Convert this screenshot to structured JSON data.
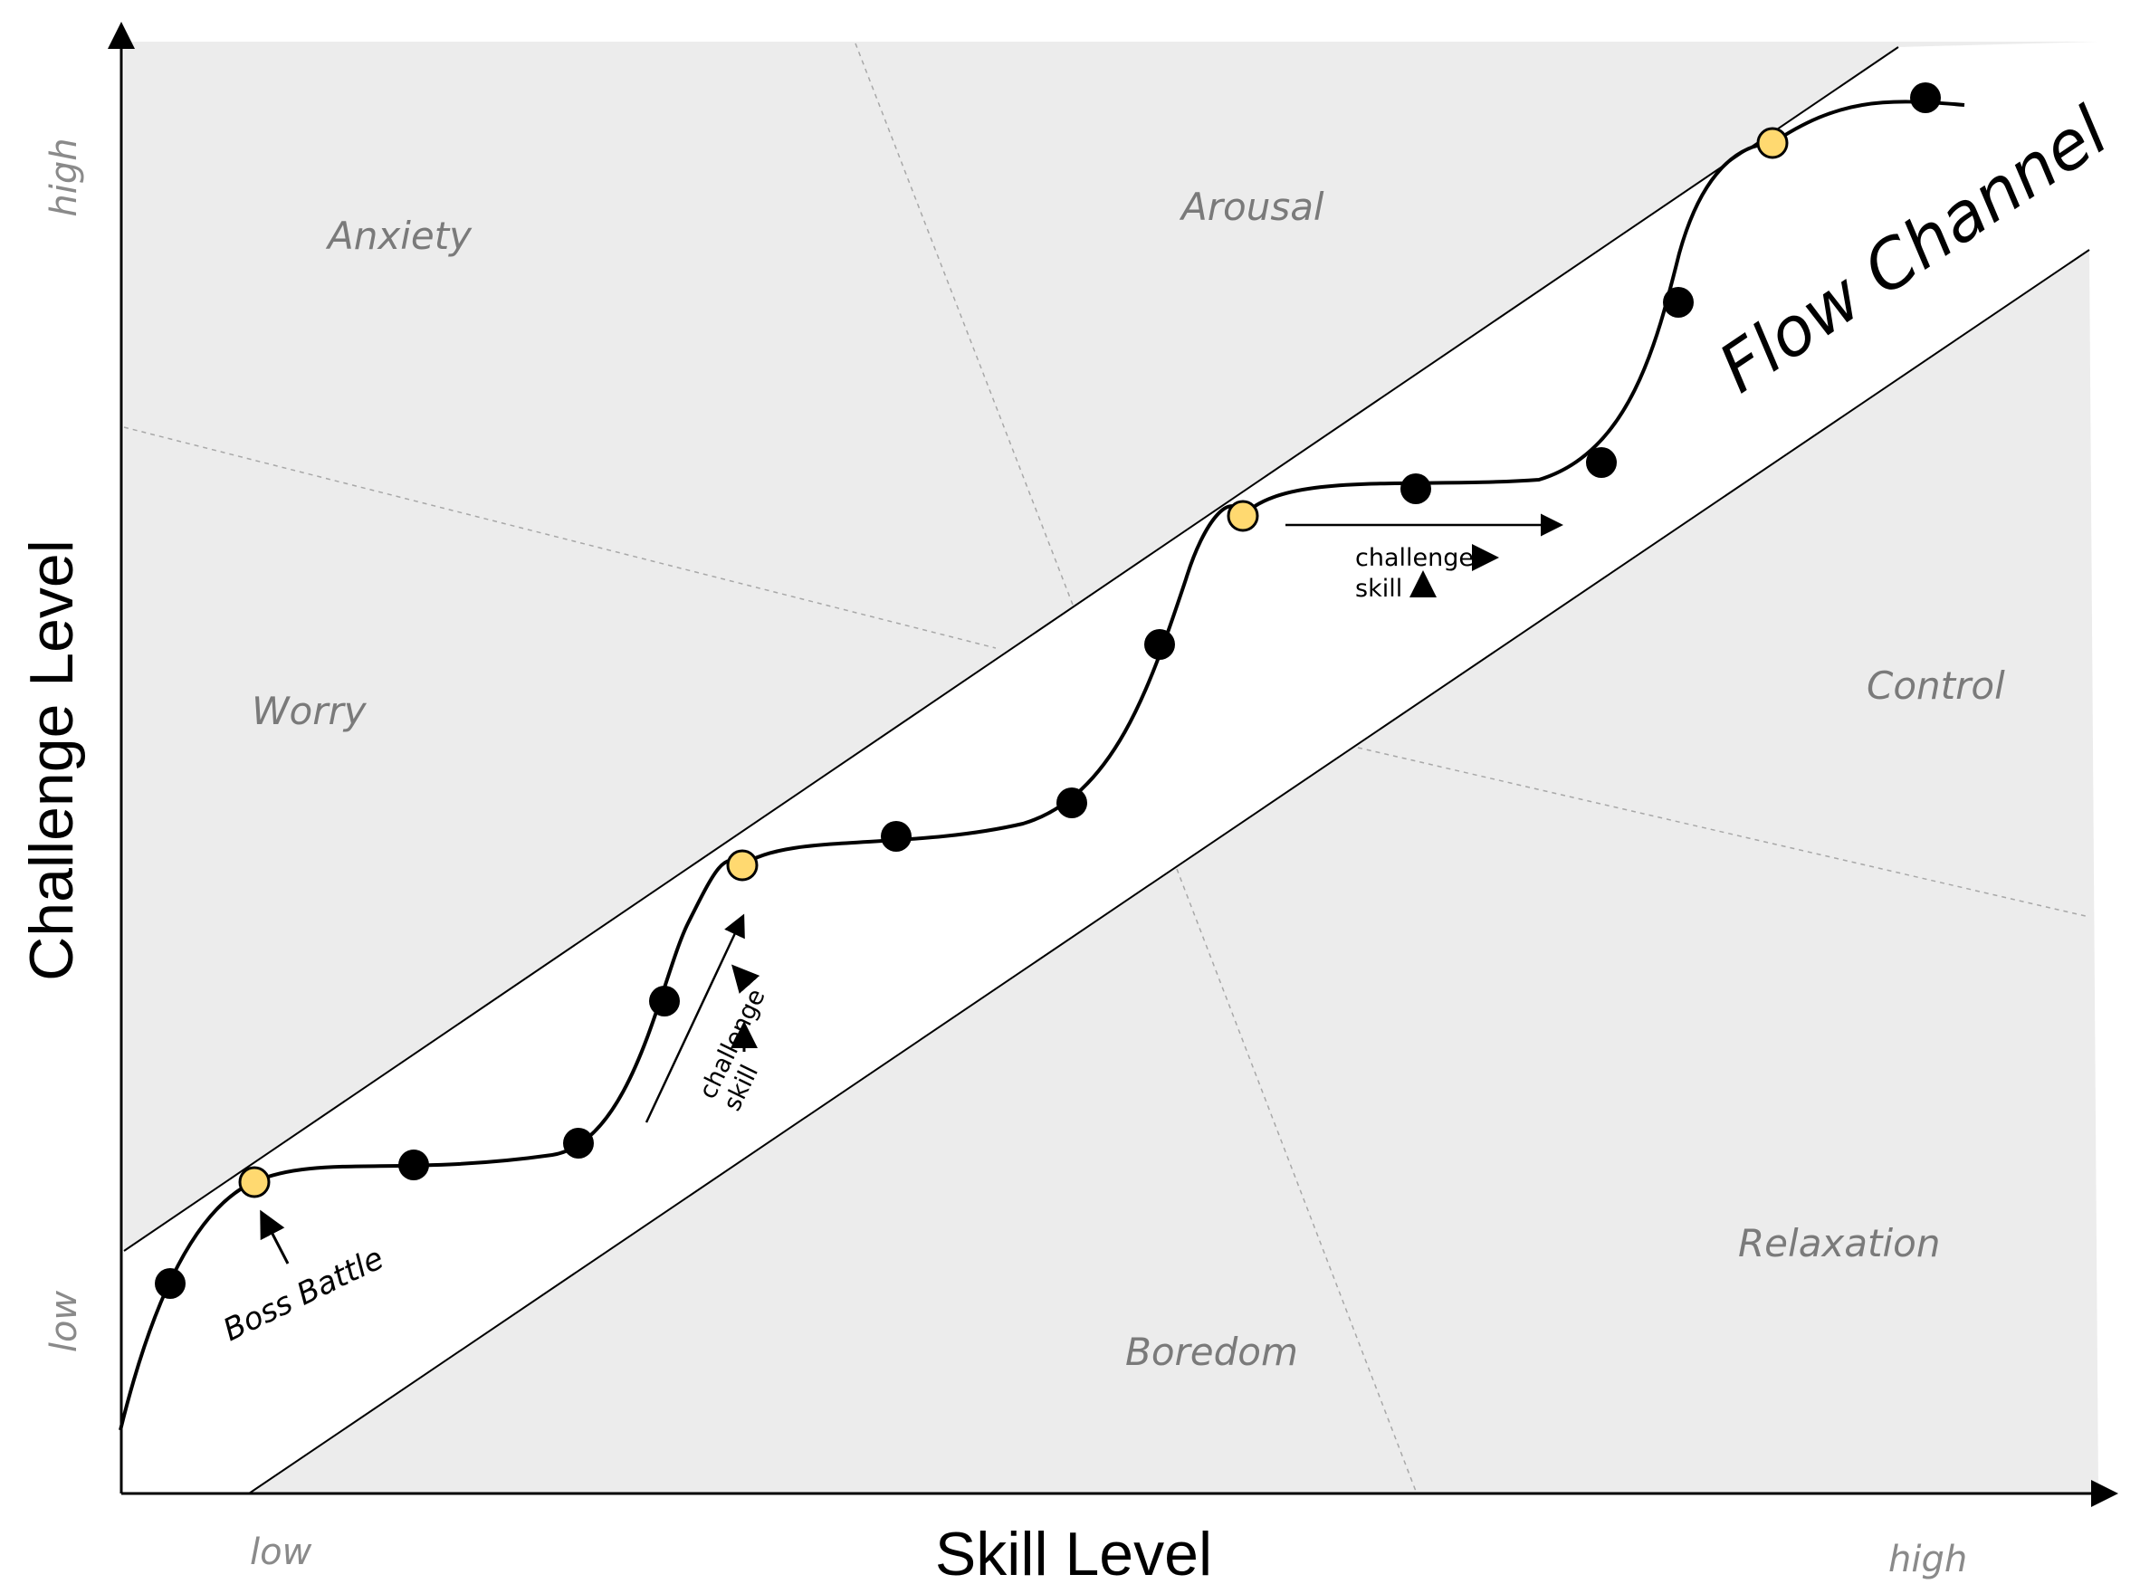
{
  "axes": {
    "x_label": "Skill Level",
    "y_label": "Challenge Level",
    "x_low": "low",
    "x_high": "high",
    "y_low": "low",
    "y_high": "high"
  },
  "zones": {
    "anxiety": "Anxiety",
    "arousal": "Arousal",
    "worry": "Worry",
    "control": "Control",
    "relaxation": "Relaxation",
    "boredom": "Boredom",
    "flow_channel": "Flow Channel"
  },
  "annotations": {
    "boss_battle": "Boss Battle",
    "diagonal_challenge": "challenge",
    "diagonal_skill": "skill",
    "flat_challenge": "challenge",
    "flat_skill": "skill"
  },
  "colors": {
    "zone_fill": "#ececec",
    "boss_node": "#ffd970",
    "regular_node": "#000000"
  }
}
